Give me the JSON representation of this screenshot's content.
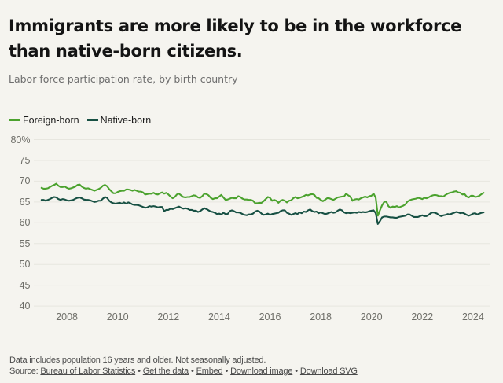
{
  "header": {
    "title": "Immigrants are more likely to be in the workforce\nthan native-born citizens.",
    "subtitle": "Labor force participation rate, by birth country"
  },
  "legend": [
    {
      "label": "Foreign-born",
      "color": "#4ba22e"
    },
    {
      "label": "Native-born",
      "color": "#175043"
    }
  ],
  "chart_data": {
    "type": "line",
    "title": "Immigrants are more likely to be in the workforce than native-born citizens.",
    "subtitle": "Labor force participation rate, by birth country",
    "unit": "%",
    "x_months": [
      "2007-01",
      "2007-02",
      "2007-03",
      "2007-04",
      "2007-05",
      "2007-06",
      "2007-07",
      "2007-08",
      "2007-09",
      "2007-10",
      "2007-11",
      "2007-12",
      "2008-01",
      "2008-02",
      "2008-03",
      "2008-04",
      "2008-05",
      "2008-06",
      "2008-07",
      "2008-08",
      "2008-09",
      "2008-10",
      "2008-11",
      "2008-12",
      "2009-01",
      "2009-02",
      "2009-03",
      "2009-04",
      "2009-05",
      "2009-06",
      "2009-07",
      "2009-08",
      "2009-09",
      "2009-10",
      "2009-11",
      "2009-12",
      "2010-01",
      "2010-02",
      "2010-03",
      "2010-04",
      "2010-05",
      "2010-06",
      "2010-07",
      "2010-08",
      "2010-09",
      "2010-10",
      "2010-11",
      "2010-12",
      "2011-01",
      "2011-02",
      "2011-03",
      "2011-04",
      "2011-05",
      "2011-06",
      "2011-07",
      "2011-08",
      "2011-09",
      "2011-10",
      "2011-11",
      "2011-12",
      "2012-01",
      "2012-02",
      "2012-03",
      "2012-04",
      "2012-05",
      "2012-06",
      "2012-07",
      "2012-08",
      "2012-09",
      "2012-10",
      "2012-11",
      "2012-12",
      "2013-01",
      "2013-02",
      "2013-03",
      "2013-04",
      "2013-05",
      "2013-06",
      "2013-07",
      "2013-08",
      "2013-09",
      "2013-10",
      "2013-11",
      "2013-12",
      "2014-01",
      "2014-02",
      "2014-03",
      "2014-04",
      "2014-05",
      "2014-06",
      "2014-07",
      "2014-08",
      "2014-09",
      "2014-10",
      "2014-11",
      "2014-12",
      "2015-01",
      "2015-02",
      "2015-03",
      "2015-04",
      "2015-05",
      "2015-06",
      "2015-07",
      "2015-08",
      "2015-09",
      "2015-10",
      "2015-11",
      "2015-12",
      "2016-01",
      "2016-02",
      "2016-03",
      "2016-04",
      "2016-05",
      "2016-06",
      "2016-07",
      "2016-08",
      "2016-09",
      "2016-10",
      "2016-11",
      "2016-12",
      "2017-01",
      "2017-02",
      "2017-03",
      "2017-04",
      "2017-05",
      "2017-06",
      "2017-07",
      "2017-08",
      "2017-09",
      "2017-10",
      "2017-11",
      "2017-12",
      "2018-01",
      "2018-02",
      "2018-03",
      "2018-04",
      "2018-05",
      "2018-06",
      "2018-07",
      "2018-08",
      "2018-09",
      "2018-10",
      "2018-11",
      "2018-12",
      "2019-01",
      "2019-02",
      "2019-03",
      "2019-04",
      "2019-05",
      "2019-06",
      "2019-07",
      "2019-08",
      "2019-09",
      "2019-10",
      "2019-11",
      "2019-12",
      "2020-01",
      "2020-02",
      "2020-03",
      "2020-04",
      "2020-05",
      "2020-06",
      "2020-07",
      "2020-08",
      "2020-09",
      "2020-10",
      "2020-11",
      "2020-12",
      "2021-01",
      "2021-02",
      "2021-03",
      "2021-04",
      "2021-05",
      "2021-06",
      "2021-07",
      "2021-08",
      "2021-09",
      "2021-10",
      "2021-11",
      "2021-12",
      "2022-01",
      "2022-02",
      "2022-03",
      "2022-04",
      "2022-05",
      "2022-06",
      "2022-07",
      "2022-08",
      "2022-09",
      "2022-10",
      "2022-11",
      "2022-12",
      "2023-01",
      "2023-02",
      "2023-03",
      "2023-04",
      "2023-05",
      "2023-06",
      "2023-07",
      "2023-08",
      "2023-09",
      "2023-10",
      "2023-11",
      "2023-12",
      "2024-01",
      "2024-02",
      "2024-03",
      "2024-04",
      "2024-05",
      "2024-06"
    ],
    "series": [
      {
        "name": "Foreign-born",
        "color": "#4ba22e",
        "values": [
          68.4,
          68.2,
          68.2,
          68.3,
          68.6,
          68.9,
          69.1,
          69.4,
          68.9,
          68.6,
          68.6,
          68.7,
          68.4,
          68.2,
          68.3,
          68.5,
          68.7,
          69.1,
          69.2,
          68.7,
          68.4,
          68.2,
          68.3,
          68.1,
          67.9,
          67.7,
          67.9,
          68.1,
          68.4,
          68.9,
          69.1,
          68.8,
          68.1,
          67.6,
          67.1,
          67.1,
          67.4,
          67.6,
          67.7,
          67.7,
          68.0,
          68.0,
          67.9,
          67.7,
          67.9,
          67.7,
          67.5,
          67.5,
          67.3,
          66.8,
          66.9,
          67.0,
          67.0,
          67.2,
          66.9,
          66.8,
          67.1,
          67.3,
          67.0,
          67.2,
          66.8,
          66.3,
          65.9,
          66.2,
          66.8,
          67.0,
          66.6,
          66.2,
          66.1,
          66.2,
          66.2,
          66.4,
          66.6,
          66.5,
          66.1,
          66.0,
          66.4,
          67.0,
          66.9,
          66.6,
          66.0,
          65.7,
          65.9,
          65.9,
          66.3,
          66.7,
          66.1,
          65.5,
          65.6,
          65.8,
          66.0,
          65.9,
          65.9,
          66.4,
          66.2,
          65.8,
          65.6,
          65.6,
          65.5,
          65.5,
          65.3,
          64.7,
          64.7,
          64.8,
          64.8,
          65.2,
          65.7,
          66.2,
          66.0,
          65.3,
          65.5,
          65.3,
          64.8,
          65.3,
          65.5,
          65.3,
          64.9,
          65.3,
          65.4,
          65.9,
          66.2,
          65.9,
          66.0,
          66.2,
          66.4,
          66.7,
          66.6,
          66.8,
          66.9,
          66.7,
          66.0,
          65.9,
          65.5,
          65.2,
          65.5,
          65.9,
          65.9,
          65.7,
          65.5,
          65.8,
          66.1,
          66.2,
          66.3,
          66.3,
          67.0,
          66.6,
          66.3,
          65.3,
          65.6,
          65.7,
          65.6,
          65.9,
          66.1,
          66.3,
          66.1,
          66.4,
          66.5,
          67.0,
          66.0,
          61.7,
          63.0,
          64.2,
          65.0,
          65.1,
          64.0,
          63.6,
          63.9,
          63.8,
          64.0,
          63.7,
          63.9,
          64.1,
          64.4,
          65.1,
          65.4,
          65.6,
          65.7,
          65.8,
          66.0,
          65.9,
          65.7,
          66.0,
          65.9,
          66.1,
          66.4,
          66.6,
          66.7,
          66.6,
          66.4,
          66.4,
          66.3,
          66.7,
          67.0,
          67.2,
          67.3,
          67.5,
          67.6,
          67.3,
          67.2,
          66.8,
          66.9,
          66.3,
          66.1,
          66.5,
          66.5,
          66.2,
          66.3,
          66.5,
          66.9,
          67.2
        ]
      },
      {
        "name": "Native-born",
        "color": "#175043",
        "values": [
          65.5,
          65.5,
          65.3,
          65.5,
          65.7,
          66.0,
          66.2,
          66.1,
          65.7,
          65.5,
          65.7,
          65.6,
          65.4,
          65.3,
          65.4,
          65.5,
          65.8,
          66.0,
          66.1,
          65.9,
          65.6,
          65.5,
          65.5,
          65.4,
          65.2,
          65.0,
          65.1,
          65.3,
          65.3,
          65.8,
          66.2,
          66.0,
          65.3,
          64.9,
          64.7,
          64.6,
          64.7,
          64.8,
          64.6,
          64.9,
          64.6,
          64.9,
          64.7,
          64.4,
          64.3,
          64.3,
          64.2,
          64.0,
          63.8,
          63.6,
          63.7,
          64.0,
          63.9,
          64.0,
          63.9,
          63.7,
          63.8,
          63.8,
          62.8,
          63.1,
          63.1,
          63.4,
          63.3,
          63.5,
          63.7,
          63.9,
          63.6,
          63.4,
          63.5,
          63.4,
          63.1,
          63.1,
          62.9,
          62.9,
          62.6,
          62.8,
          63.2,
          63.5,
          63.3,
          63.0,
          62.7,
          62.6,
          62.4,
          62.1,
          62.2,
          62.0,
          62.4,
          62.1,
          62.1,
          62.8,
          63.0,
          62.8,
          62.5,
          62.5,
          62.4,
          62.1,
          61.9,
          61.8,
          62.0,
          62.0,
          62.2,
          62.7,
          62.9,
          62.7,
          62.2,
          61.9,
          62.0,
          62.2,
          61.9,
          62.1,
          62.2,
          62.3,
          62.4,
          62.8,
          63.0,
          63.0,
          62.4,
          62.2,
          61.9,
          62.1,
          62.3,
          62.1,
          62.5,
          62.3,
          62.7,
          62.6,
          63.0,
          63.2,
          62.8,
          62.6,
          62.7,
          62.3,
          62.5,
          62.3,
          62.1,
          62.2,
          62.4,
          62.6,
          62.4,
          62.5,
          62.9,
          63.2,
          63.0,
          62.5,
          62.3,
          62.4,
          62.3,
          62.4,
          62.5,
          62.4,
          62.6,
          62.5,
          62.6,
          62.5,
          62.6,
          62.8,
          62.9,
          63.0,
          62.3,
          59.7,
          60.4,
          61.3,
          61.5,
          61.5,
          61.4,
          61.3,
          61.3,
          61.2,
          61.2,
          61.4,
          61.5,
          61.6,
          61.7,
          62.0,
          62.0,
          61.7,
          61.4,
          61.4,
          61.4,
          61.6,
          61.8,
          61.6,
          61.6,
          61.9,
          62.3,
          62.5,
          62.4,
          62.2,
          61.8,
          61.6,
          61.8,
          61.9,
          62.1,
          62.0,
          62.2,
          62.4,
          62.6,
          62.5,
          62.3,
          62.4,
          62.2,
          61.9,
          61.7,
          61.9,
          62.2,
          62.3,
          62.0,
          62.2,
          62.4,
          62.5
        ]
      }
    ],
    "ylim": [
      40,
      80
    ],
    "y_ticks": [
      80,
      75,
      70,
      65,
      60,
      55,
      50,
      45,
      40
    ],
    "y_tick_top_label": "80%",
    "x_ticks": [
      2008,
      2010,
      2012,
      2014,
      2016,
      2018,
      2020,
      2022,
      2024
    ],
    "grid": "horizontal",
    "legend_position": "top"
  },
  "footer": {
    "notes": "Data includes population 16 years and older. Not seasonally adjusted.",
    "source_prefix": "Source: ",
    "source_link": "Bureau of Labor Statistics",
    "links": [
      "Get the data",
      "Embed",
      "Download image",
      "Download SVG"
    ],
    "separator": "•"
  },
  "colors": {
    "background": "#f5f4ef",
    "grid": "#e7e6df",
    "title": "#141414",
    "subtitle": "#6e6e6e",
    "axis": "#6f6f69",
    "footer": "#4b4b4b"
  }
}
